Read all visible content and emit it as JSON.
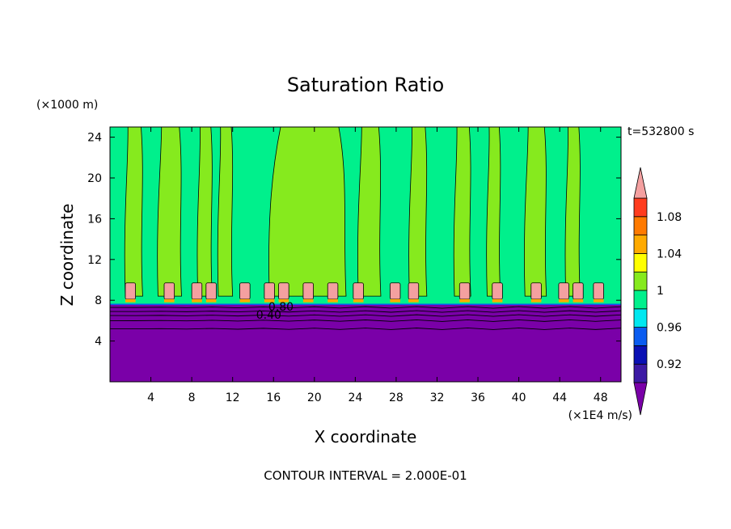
{
  "chart_data": {
    "type": "heatmap",
    "title": "Saturation Ratio",
    "xlabel": "X coordinate",
    "ylabel": "Z coordinate",
    "x_unit": "(×1E4 m/s)",
    "y_unit": "(×1000 m)",
    "time_label": "t=532800 s",
    "footer": "CONTOUR INTERVAL = 2.000E-01",
    "xlim": [
      0,
      50
    ],
    "ylim": [
      0,
      25
    ],
    "x_ticks": [
      "4",
      "8",
      "12",
      "16",
      "20",
      "24",
      "28",
      "32",
      "36",
      "40",
      "44",
      "48"
    ],
    "y_ticks": [
      "4",
      "8",
      "12",
      "16",
      "20",
      "24"
    ],
    "contour_labels": [
      "0.80",
      "0.40"
    ],
    "colorbar": {
      "labels": [
        "1.08",
        "1.04",
        "1",
        "0.96",
        "0.92"
      ],
      "levels": [
        {
          "color": "#7a00a8"
        },
        {
          "color": "#3c1aa4"
        },
        {
          "color": "#0a10b4"
        },
        {
          "color": "#0a5cf0"
        },
        {
          "color": "#00e8f0"
        },
        {
          "color": "#00f08c"
        },
        {
          "color": "#86ea1e"
        },
        {
          "color": "#ffff00"
        },
        {
          "color": "#ffaa00"
        },
        {
          "color": "#ff7a00"
        },
        {
          "color": "#ff3c1e"
        },
        {
          "color": "#f4a0a0"
        }
      ]
    },
    "regions": {
      "lower_layer": {
        "z_range": [
          0,
          7.6
        ],
        "value": "< 0.92",
        "color": "#7a00a8"
      },
      "upper_layer": {
        "z_range": [
          7.6,
          25
        ],
        "value": "1 to 1.02",
        "color": "#00f08c"
      },
      "plumes": {
        "value": "1.02 to 1.04",
        "color": "#86ea1e"
      },
      "cloud_tops": {
        "z_range": [
          7.8,
          9.7
        ],
        "value": "> 1.08",
        "color": "#f4a0a0"
      }
    }
  }
}
